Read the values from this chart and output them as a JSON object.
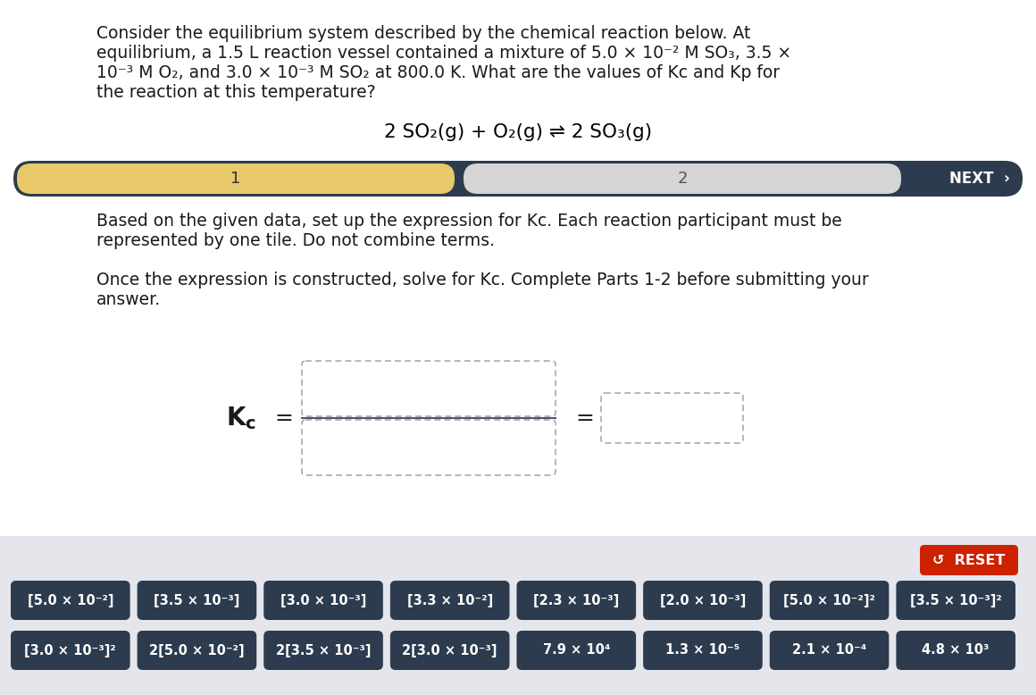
{
  "bg_color": "#ffffff",
  "bottom_bg_color": "#e5e5ec",
  "title_text_line1": "Consider the equilibrium system described by the chemical reaction below. At",
  "title_text_line2": "equilibrium, a 1.5 L reaction vessel contained a mixture of 5.0 × 10⁻² M SO₃, 3.5 ×",
  "title_text_line3": "10⁻³ M O₂, and 3.0 × 10⁻³ M SO₂ at 800.0 K. What are the values of Kc and Kp for",
  "title_text_line4": "the reaction at this temperature?",
  "reaction_text": "2 SO₂(g) + O₂(g) ⇌ 2 SO₃(g)",
  "nav_bg": "#2d3b4e",
  "nav_tab1_bg": "#e8c96a",
  "nav_tab1_text": "1",
  "nav_tab2_bg": "#d5d5d5",
  "nav_tab2_text": "2",
  "nav_next_text": "NEXT  ›",
  "instruction_line1": "Based on the given data, set up the expression for Kc. Each reaction participant must be",
  "instruction_line2": "represented by one tile. Do not combine terms.",
  "instruction_line3": "Once the expression is constructed, solve for Kc. Complete Parts 1-2 before submitting your",
  "instruction_line4": "answer.",
  "reset_color": "#cc2200",
  "reset_text": "↺  RESET",
  "tile_bg": "#2d3b4e",
  "tile_color": "#ffffff",
  "tiles_row1": [
    "[5.0 × 10⁻²]",
    "[3.5 × 10⁻³]",
    "[3.0 × 10⁻³]",
    "[3.3 × 10⁻²]",
    "[2.3 × 10⁻³]",
    "[2.0 × 10⁻³]",
    "[5.0 × 10⁻²]²",
    "[3.5 × 10⁻³]²"
  ],
  "tiles_row2": [
    "[3.0 × 10⁻³]²",
    "2[5.0 × 10⁻²]",
    "2[3.5 × 10⁻³]",
    "2[3.0 × 10⁻³]",
    "7.9 × 10⁴",
    "1.3 × 10⁻⁵",
    "2.1 × 10⁻⁴",
    "4.8 × 10³"
  ]
}
